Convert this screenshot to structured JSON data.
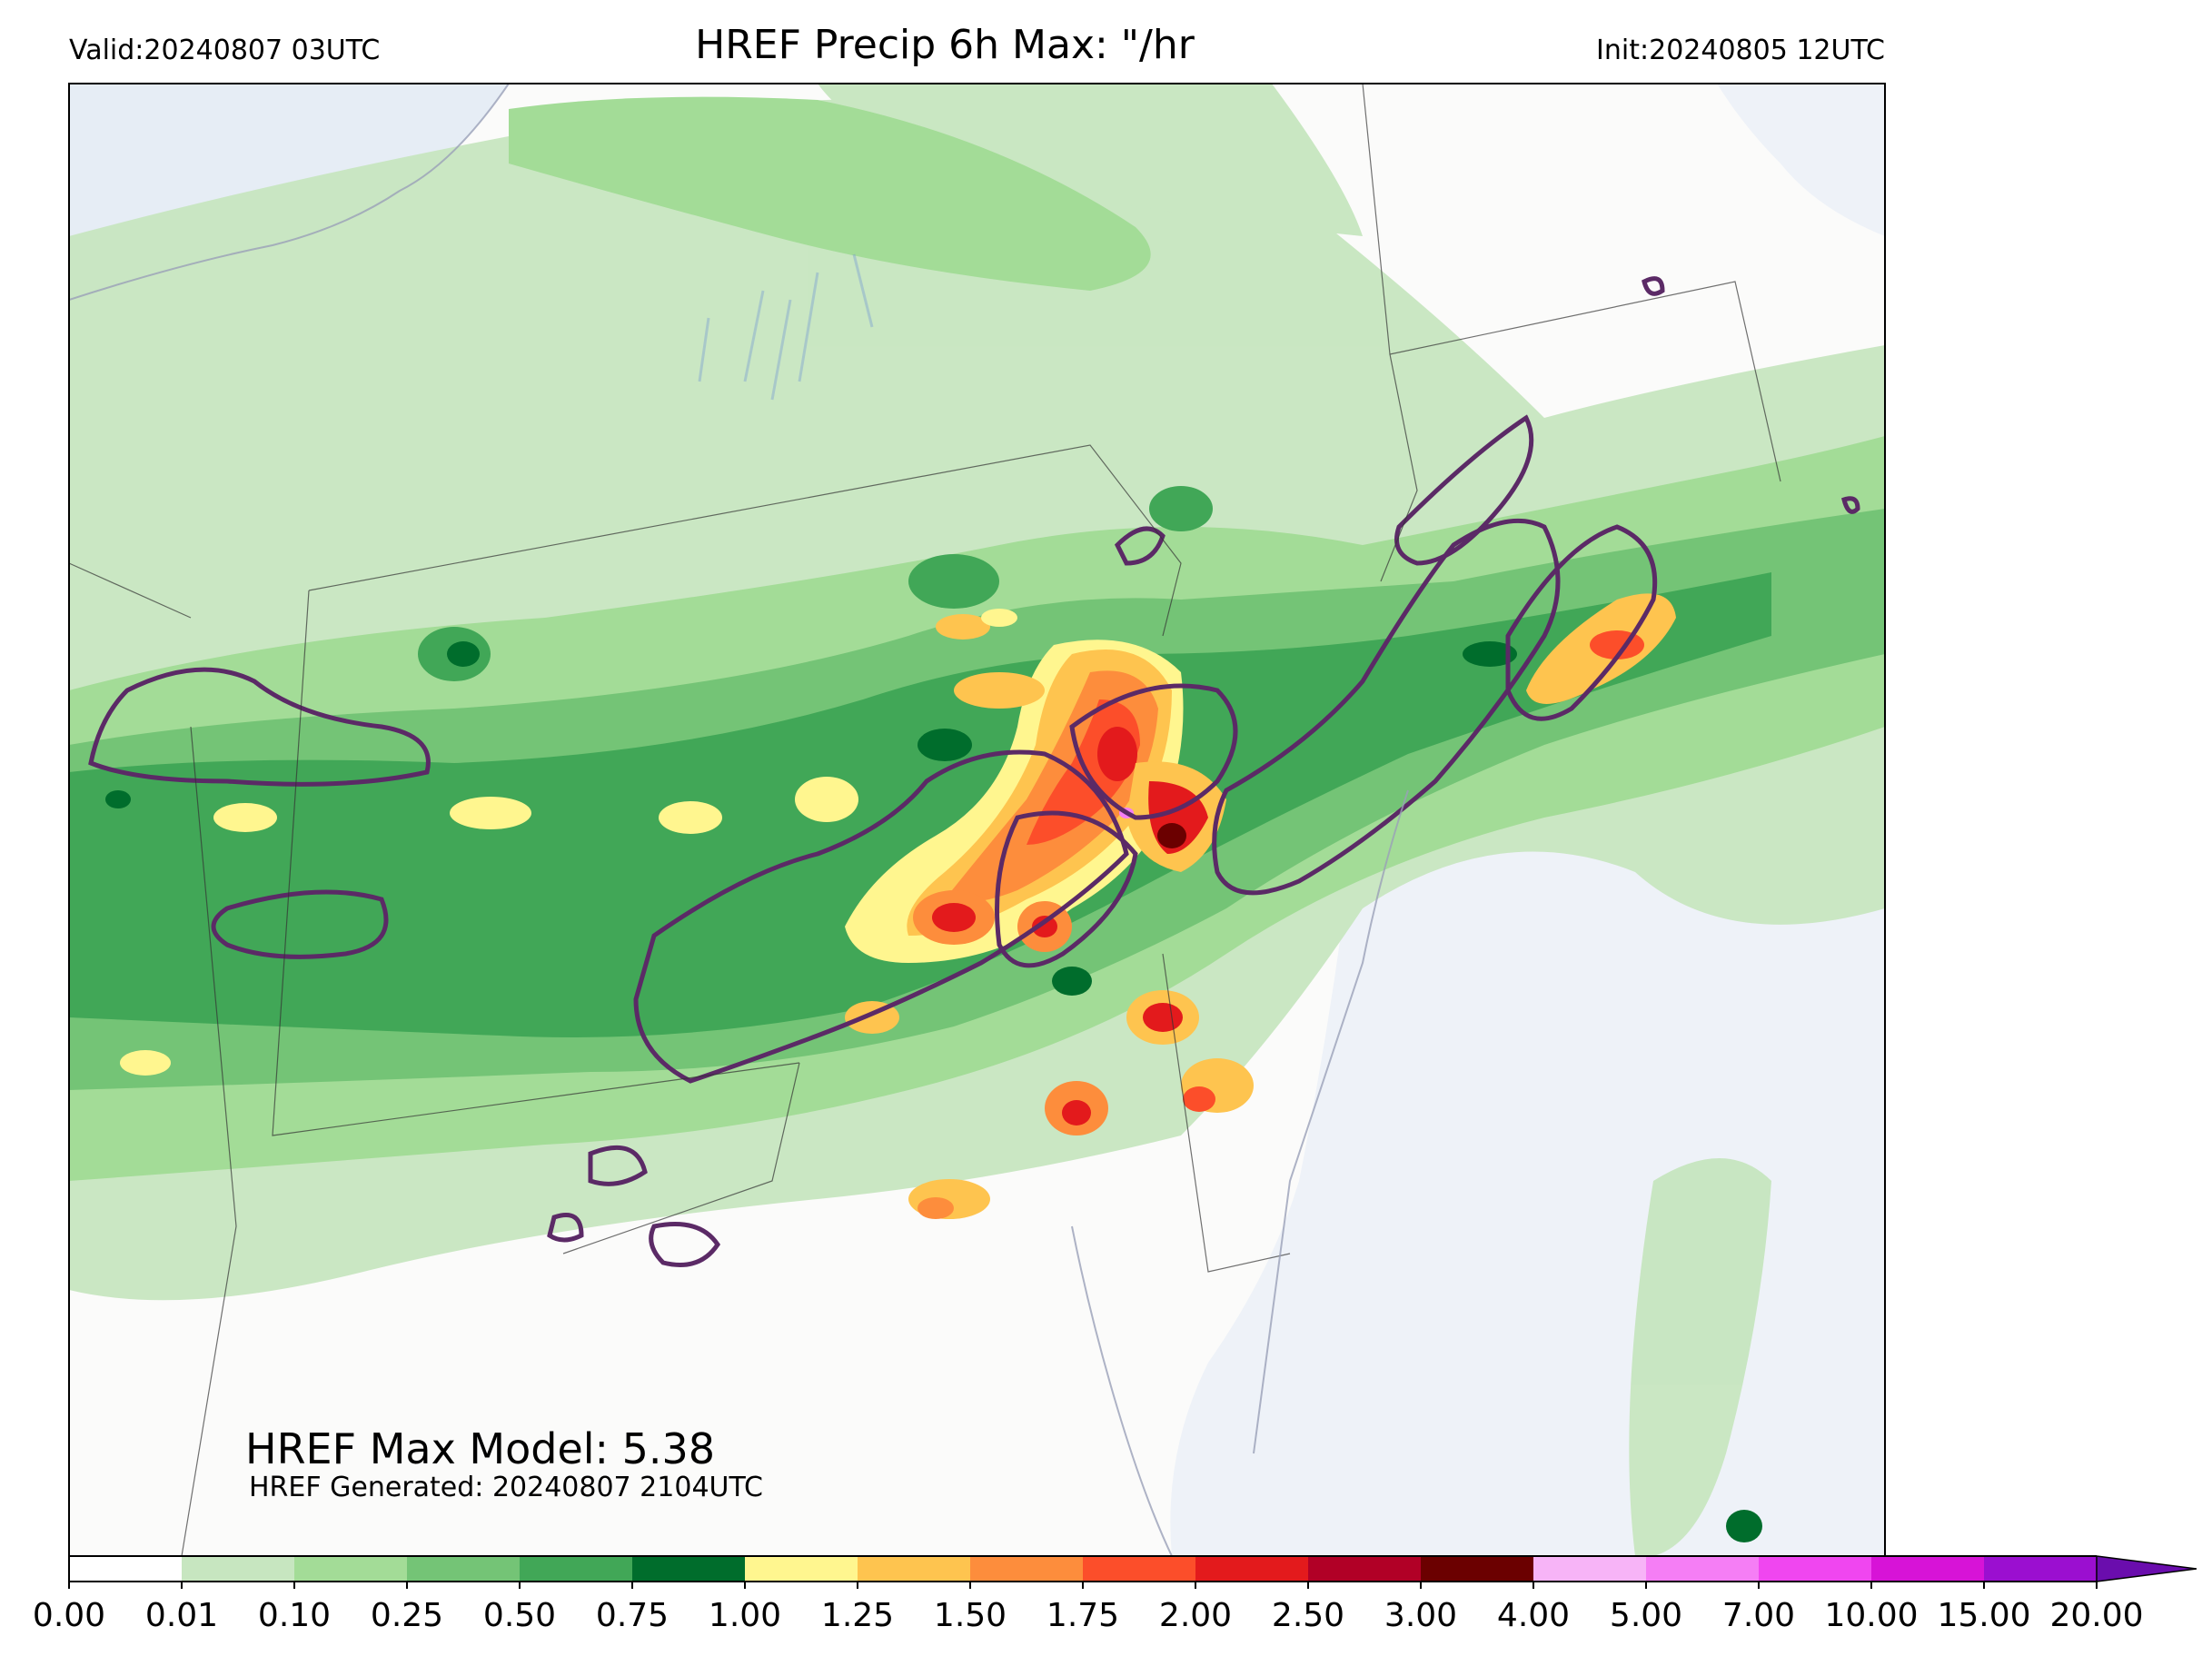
{
  "header": {
    "valid": "Valid:20240807 03UTC",
    "title": "HREF Precip 6h Max: \"/hr",
    "init": "Init:20240805 12UTC"
  },
  "annotations": {
    "max_model": "HREF Max Model: 5.38",
    "generated": "HREF Generated: 20240807 2104UTC"
  },
  "colorbar": {
    "levels": [
      "0.00",
      "0.01",
      "0.10",
      "0.25",
      "0.50",
      "0.75",
      "1.00",
      "1.25",
      "1.50",
      "1.75",
      "2.00",
      "2.50",
      "3.00",
      "4.00",
      "5.00",
      "7.00",
      "10.00",
      "15.00",
      "20.00"
    ],
    "colors": [
      "#ffffff",
      "#c7e6c0",
      "#a3dc97",
      "#74c476",
      "#41a757",
      "#006d2c",
      "#fff68f",
      "#fec44f",
      "#fd8d3c",
      "#fc4e2a",
      "#e31a1c",
      "#b10026",
      "#6b0000",
      "#f7b4f7",
      "#f57ef5",
      "#f046f0",
      "#d713d7",
      "#9b0fd0"
    ],
    "extend_color": "#6a0dad"
  },
  "map_colors": {
    "land": "#fbfbfa",
    "water": "#eef2f8",
    "contour": "#5b2a66",
    "border": "#333333"
  }
}
